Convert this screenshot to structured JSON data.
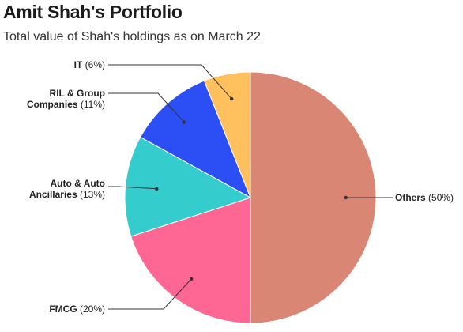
{
  "header": {
    "title": "Amit Shah's Portfolio",
    "subtitle": "Total value of Shah's holdings as on March 22"
  },
  "chart_data": {
    "type": "pie",
    "title": "Amit Shah's Portfolio",
    "subtitle": "Total value of Shah's holdings as on March 22",
    "slices": [
      {
        "name": "Others",
        "value": 50,
        "color": "#d98674",
        "label_lines": [
          {
            "name": "Others",
            "pct": "(50%)"
          }
        ]
      },
      {
        "name": "FMCG",
        "value": 20,
        "color": "#fe6694",
        "label_lines": [
          {
            "name": "FMCG",
            "pct": "(20%)"
          }
        ]
      },
      {
        "name": "Auto & Auto Ancillaries",
        "value": 13,
        "color": "#35cccd",
        "label_lines": [
          {
            "name": "Auto & Auto",
            "pct": ""
          },
          {
            "name": "Ancillaries",
            "pct": "(13%)"
          }
        ]
      },
      {
        "name": "RIL & Group Companies",
        "value": 11,
        "color": "#2c4ff5",
        "label_lines": [
          {
            "name": "RIL & Group",
            "pct": ""
          },
          {
            "name": "Companies",
            "pct": "(11%)"
          }
        ]
      },
      {
        "name": "IT",
        "value": 6,
        "color": "#ffc05d",
        "label_lines": [
          {
            "name": "IT",
            "pct": "(6%)"
          }
        ]
      }
    ]
  }
}
